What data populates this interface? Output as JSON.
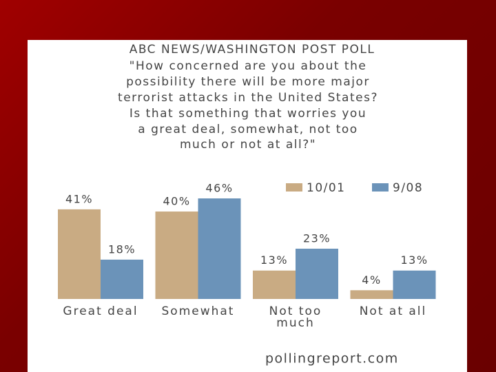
{
  "chart_data": {
    "type": "bar",
    "title": "ABC NEWS/WASHINGTON POST POLL",
    "subtitle": [
      "\"How concerned are you about the",
      "possibility there will be more major",
      "terrorist attacks in the United States?",
      "Is that something that worries you",
      "a great deal, somewhat, not too",
      "much or not at all?\""
    ],
    "categories": [
      "Great deal",
      "Somewhat",
      "Not too much",
      "Not at all"
    ],
    "series": [
      {
        "name": "10/01",
        "color": "#c9ab83",
        "values": [
          41,
          40,
          13,
          4
        ],
        "value_labels": [
          "41%",
          "40%",
          "13%",
          "4%"
        ]
      },
      {
        "name": "9/08",
        "color": "#6b93b9",
        "values": [
          18,
          46,
          23,
          13
        ],
        "value_labels": [
          "18%",
          "46%",
          "23%",
          "13%"
        ]
      }
    ],
    "legend": "top-right",
    "source": "pollingreport.com"
  }
}
